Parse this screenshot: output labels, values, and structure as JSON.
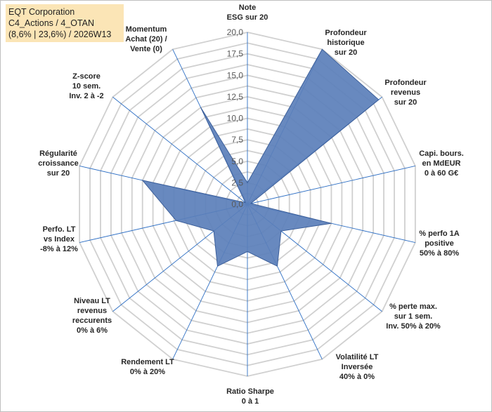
{
  "info": {
    "line1": "EQT Corporation",
    "line2": "C4_Actions / 4_OTAN",
    "line3": "(8,6% | 23,6%) / 2026W13"
  },
  "colors": {
    "grid": "#d0d0d0",
    "spoke": "#2e6fc4",
    "fill": "#5b7fba",
    "stroke": "#3c5f9a"
  },
  "chart_data": {
    "type": "radar",
    "rmax": 20,
    "ticks": [
      "0,0",
      "2,5",
      "5,0",
      "7,5",
      "10,0",
      "12,5",
      "15,0",
      "17,5",
      "20,0"
    ],
    "axes": [
      {
        "label": [
          "Note",
          "ESG sur 20"
        ],
        "value": 2.5
      },
      {
        "label": [
          "Profondeur",
          "historique",
          "sur 20"
        ],
        "value": 20
      },
      {
        "label": [
          "Profondeur",
          "revenus",
          "sur 20"
        ],
        "value": 19.5
      },
      {
        "label": [
          "Capi. bours.",
          "en MdEUR",
          "0 à 60 G€"
        ],
        "value": 0.4
      },
      {
        "label": [
          "% perfo 1A",
          "positive",
          "50% à 80%"
        ],
        "value": 10
      },
      {
        "label": [
          "% perte max.",
          "sur 1 sem.",
          "Inv. 50% à 20%"
        ],
        "value": 5
      },
      {
        "label": [
          "Volatilité LT",
          "Inversée",
          "40% à 0%"
        ],
        "value": 8
      },
      {
        "label": [
          "Ratio Sharpe",
          "0 à 1"
        ],
        "value": 5.5
      },
      {
        "label": [
          "Rendement LT",
          "0% à 20%"
        ],
        "value": 8
      },
      {
        "label": [
          "Niveau LT",
          "revenus",
          "reccurents",
          "0% à 6%"
        ],
        "value": 5
      },
      {
        "label": [
          "Perfo. LT",
          "vs Index",
          "-8% à 12%"
        ],
        "value": 8.5
      },
      {
        "label": [
          "Régularité",
          "croissance",
          "sur 20"
        ],
        "value": 12.5
      },
      {
        "label": [
          "Z-score",
          "10 sem.",
          "Inv. 2 à -2"
        ],
        "value": 0.3
      },
      {
        "label": [
          "Momentum",
          "Achat (20) /",
          "Vente (0)"
        ],
        "value": 12.5
      }
    ]
  }
}
